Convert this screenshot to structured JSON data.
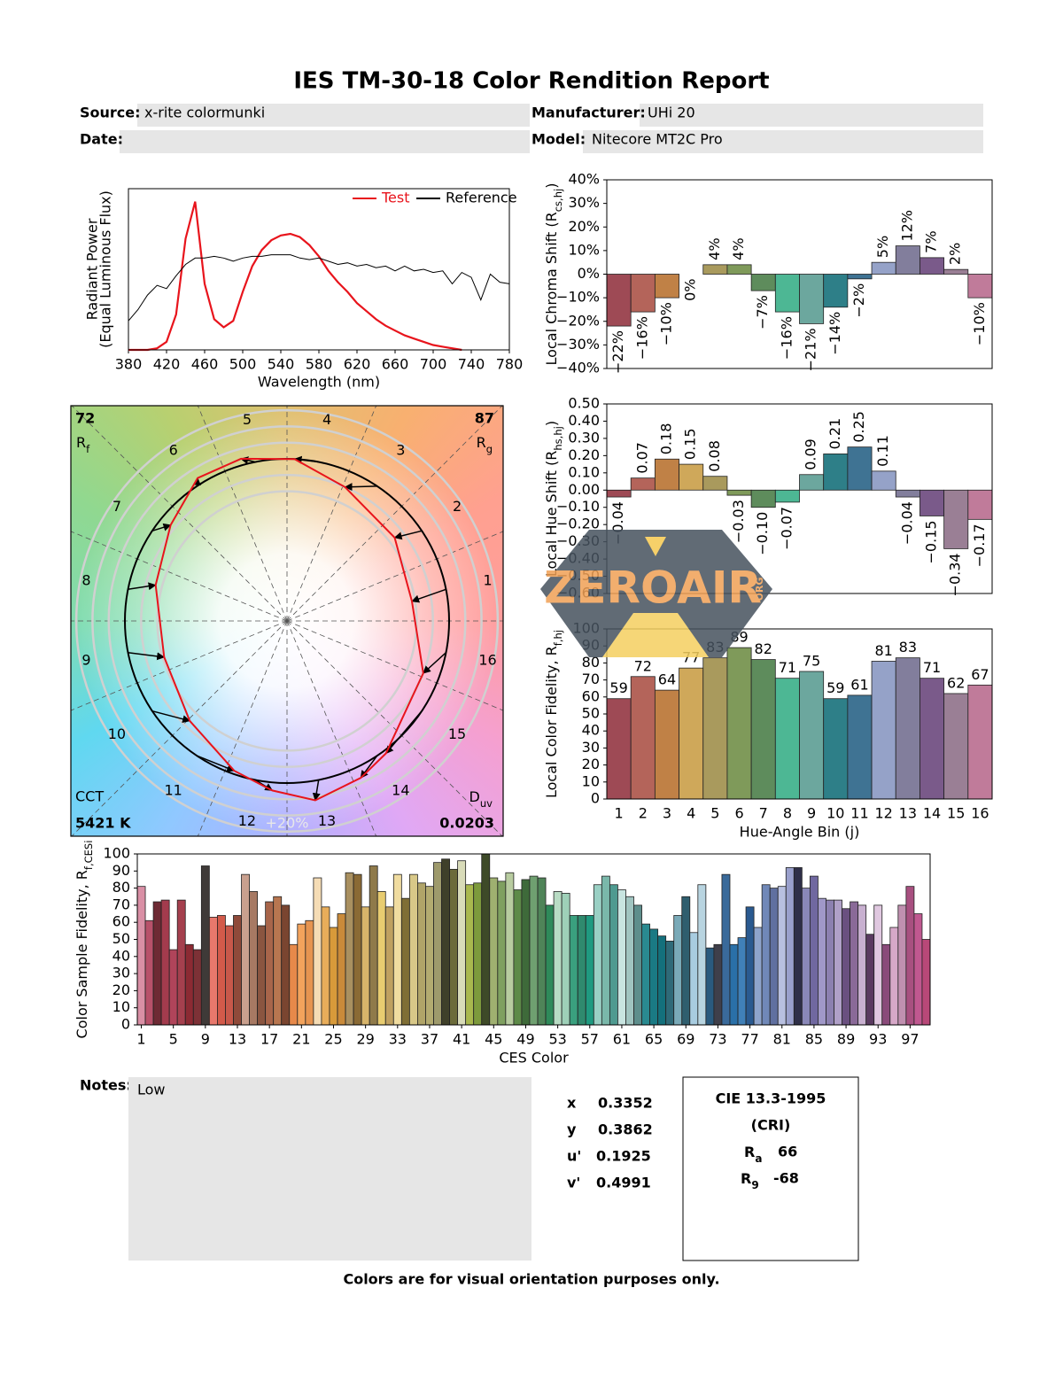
{
  "title": "IES TM-30-18 Color Rendition Report",
  "fields": [
    {
      "label": "Source:",
      "value": "x-rite colormunki"
    },
    {
      "label": "Manufacturer:",
      "value": "UHi 20"
    },
    {
      "label": "Date:"
    },
    {
      "label": "Model:",
      "value": "Nitecore MT2C Pro"
    }
  ],
  "chart_data": [
    {
      "type": "line",
      "xlabel": "Wavelength (nm)",
      "ylabel": "Radiant Power",
      "ylabel_note": "(Equal Luminous Flux)",
      "x": [
        380,
        390,
        400,
        410,
        420,
        430,
        440,
        450,
        460,
        470,
        480,
        490,
        500,
        510,
        520,
        530,
        540,
        550,
        560,
        570,
        580,
        590,
        600,
        610,
        620,
        630,
        640,
        650,
        660,
        670,
        680,
        690,
        700,
        710,
        720,
        730,
        740,
        750,
        760,
        770,
        780
      ],
      "series": [
        {
          "name": "Test",
          "color": "#e8141c",
          "values": [
            0,
            0,
            0,
            0.01,
            0.05,
            0.22,
            0.69,
            0.92,
            0.41,
            0.19,
            0.14,
            0.18,
            0.36,
            0.52,
            0.62,
            0.68,
            0.71,
            0.72,
            0.7,
            0.65,
            0.58,
            0.49,
            0.42,
            0.36,
            0.29,
            0.24,
            0.19,
            0.15,
            0.12,
            0.09,
            0.07,
            0.05,
            0.03,
            0.02,
            0.01,
            0,
            null,
            null,
            null,
            null,
            null
          ]
        },
        {
          "name": "Reference",
          "color": "#000000",
          "values": [
            0.18,
            0.25,
            0.34,
            0.4,
            0.38,
            0.46,
            0.53,
            0.57,
            0.57,
            0.58,
            0.57,
            0.55,
            0.57,
            0.58,
            0.58,
            0.59,
            0.59,
            0.59,
            0.57,
            0.56,
            0.57,
            0.55,
            0.53,
            0.54,
            0.52,
            0.53,
            0.51,
            0.52,
            0.49,
            0.52,
            0.49,
            0.5,
            0.48,
            0.49,
            0.41,
            0.48,
            0.45,
            0.31,
            0.47,
            0.42,
            0.41
          ]
        }
      ],
      "xlim": [
        380,
        780
      ],
      "xticks": [
        380,
        420,
        460,
        500,
        540,
        580,
        620,
        660,
        700,
        740,
        780
      ],
      "ylim": [
        0,
        1
      ],
      "legend": "upper right"
    },
    {
      "type": "bar",
      "ylabel": [
        "Local Chroma Shift (R",
        "cs,hj",
        ")"
      ],
      "values": [
        -22,
        -16,
        -10,
        0,
        4,
        4,
        -7,
        -16,
        -21,
        -14,
        -2,
        5,
        12,
        7,
        2,
        -10
      ],
      "value_labels": [
        "−22%",
        "−16%",
        "−10%",
        "0%",
        "4%",
        "4%",
        "−7%",
        "−16%",
        "−21%",
        "−14%",
        "−2%",
        "5%",
        "12%",
        "7%",
        "2%",
        "−10%"
      ],
      "data_labels": "vertical",
      "colors": [
        "#9e4a55",
        "#b4645a",
        "#c08146",
        "#cfa85a",
        "#a99a5d",
        "#7f9a5a",
        "#5e8c5c",
        "#4db794",
        "#6ca79e",
        "#2e7f88",
        "#3f7393",
        "#95a2c8",
        "#827e9c",
        "#7a5a8a",
        "#9a7f95",
        "#c07b9a"
      ],
      "ylim": [
        -40,
        40
      ],
      "yticks": [
        {
          "value": 40,
          "label": "40%"
        },
        {
          "value": 30,
          "label": "30%"
        },
        {
          "value": 20,
          "label": "20%"
        },
        {
          "value": 10,
          "label": "10%"
        },
        {
          "value": 0,
          "label": "0%"
        },
        {
          "value": -10,
          "label": "−10%"
        },
        {
          "value": -20,
          "label": "−20%"
        },
        {
          "value": -30,
          "label": "−30%"
        },
        {
          "value": -40,
          "label": "−40%"
        }
      ]
    },
    {
      "type": "bar",
      "ylabel": [
        "Local Hue Shift (R",
        "hs,hj",
        ")"
      ],
      "values": [
        -0.04,
        0.07,
        0.18,
        0.15,
        0.08,
        -0.03,
        -0.1,
        -0.07,
        0.09,
        0.21,
        0.25,
        0.11,
        -0.04,
        -0.15,
        -0.34,
        -0.17
      ],
      "value_labels": [
        "−0.04",
        "0.07",
        "0.18",
        "0.15",
        "0.08",
        "−0.03",
        "−0.10",
        "−0.07",
        "0.09",
        "0.21",
        "0.25",
        "0.11",
        "−0.04",
        "−0.15",
        "−0.34",
        "−0.17"
      ],
      "data_labels": "vertical",
      "colors": [
        "#9e4a55",
        "#b4645a",
        "#c08146",
        "#cfa85a",
        "#a99a5d",
        "#7f9a5a",
        "#5e8c5c",
        "#4db794",
        "#6ca79e",
        "#2e7f88",
        "#3f7393",
        "#95a2c8",
        "#827e9c",
        "#7a5a8a",
        "#9a7f95",
        "#c07b9a"
      ],
      "ylim": [
        -0.6,
        0.5
      ],
      "yticks": [
        {
          "value": 0.5,
          "label": "0.50"
        },
        {
          "value": 0.4,
          "label": "0.40"
        },
        {
          "value": 0.3,
          "label": "0.30"
        },
        {
          "value": 0.2,
          "label": "0.20"
        },
        {
          "value": 0.1,
          "label": "0.10"
        },
        {
          "value": 0,
          "label": "0.00"
        },
        {
          "value": -0.1,
          "label": "−0.10"
        },
        {
          "value": -0.2,
          "label": "−0.20"
        },
        {
          "value": -0.3,
          "label": "−0.30"
        },
        {
          "value": -0.4,
          "label": "−0.40"
        },
        {
          "value": -0.5,
          "label": "−0.50"
        },
        {
          "value": -0.6,
          "label": "−0.60"
        }
      ]
    },
    {
      "type": "bar",
      "ylabel": [
        "Local Color Fidelity, R",
        "f,hj"
      ],
      "xlabel": "Hue-Angle Bin (j)",
      "categories": [
        1,
        2,
        3,
        4,
        5,
        6,
        7,
        8,
        9,
        10,
        11,
        12,
        13,
        14,
        15,
        16
      ],
      "values": [
        59,
        72,
        64,
        77,
        83,
        89,
        82,
        71,
        75,
        59,
        61,
        81,
        83,
        71,
        62,
        67
      ],
      "data_labels": "horizontal",
      "colors": [
        "#9e4a55",
        "#b4645a",
        "#c08146",
        "#cfa85a",
        "#a99a5d",
        "#7f9a5a",
        "#5e8c5c",
        "#4db794",
        "#6ca79e",
        "#2e7f88",
        "#3f7393",
        "#95a2c8",
        "#827e9c",
        "#7a5a8a",
        "#9a7f95",
        "#c07b9a"
      ],
      "ylim": [
        0,
        100
      ],
      "yticks": [
        0,
        10,
        20,
        30,
        40,
        50,
        60,
        70,
        80,
        90,
        100
      ]
    },
    {
      "type": "vector",
      "hue_bins": [
        1,
        2,
        3,
        4,
        5,
        6,
        7,
        8,
        9,
        10,
        11,
        12,
        13,
        14,
        15,
        16
      ],
      "rf": 72,
      "rf_label": [
        "R",
        "f"
      ],
      "rg": 87,
      "rg_label": [
        "R",
        "g"
      ],
      "cct_label": "CCT",
      "cct": {
        "value": 5421,
        "label": "5421 K"
      },
      "duv_label": [
        "D",
        "uv"
      ],
      "duv": 0.0203,
      "ring_label": "+20%",
      "test_color": "#e8141c",
      "reference_color": "#000000"
    },
    {
      "type": "bar",
      "ylabel": [
        "Color Sample Fidelity, R",
        "f,CESi"
      ],
      "xlabel": "CES Color",
      "x": [
        1,
        2,
        3,
        4,
        5,
        6,
        7,
        8,
        9,
        10,
        11,
        12,
        13,
        14,
        15,
        16,
        17,
        18,
        19,
        20,
        21,
        22,
        23,
        24,
        25,
        26,
        27,
        28,
        29,
        30,
        31,
        32,
        33,
        34,
        35,
        36,
        37,
        38,
        39,
        40,
        41,
        42,
        43,
        44,
        45,
        46,
        47,
        48,
        49,
        50,
        51,
        52,
        53,
        54,
        55,
        56,
        57,
        58,
        59,
        60,
        61,
        62,
        63,
        64,
        65,
        66,
        67,
        68,
        69,
        70,
        71,
        72,
        73,
        74,
        75,
        76,
        77,
        78,
        79,
        80,
        81,
        82,
        83,
        84,
        85,
        86,
        87,
        88,
        89,
        90,
        91,
        92,
        93,
        94,
        95,
        96,
        97,
        98,
        99
      ],
      "values": [
        81,
        61,
        72,
        73,
        44,
        73,
        47,
        44,
        93,
        63,
        64,
        58,
        64,
        88,
        78,
        58,
        72,
        75,
        70,
        47,
        59,
        61,
        86,
        69,
        57,
        65,
        89,
        88,
        69,
        93,
        78,
        69,
        88,
        74,
        88,
        83,
        81,
        95,
        97,
        91,
        96,
        82,
        83,
        100,
        86,
        84,
        89,
        79,
        85,
        87,
        86,
        70,
        78,
        77,
        64,
        64,
        64,
        82,
        87,
        82,
        79,
        75,
        70,
        59,
        56,
        52,
        49,
        64,
        75,
        54,
        82,
        45,
        47,
        88,
        47,
        51,
        69,
        57,
        82,
        80,
        81,
        92,
        92,
        80,
        87,
        74,
        73,
        73,
        68,
        72,
        70,
        53,
        70,
        47,
        57,
        70,
        81,
        65,
        50
      ],
      "colors": [
        "#d98fa5",
        "#b8516a",
        "#6e2a34",
        "#a33b4d",
        "#b0445a",
        "#a5404e",
        "#8c2a33",
        "#7d3136",
        "#3f3a38",
        "#e8786c",
        "#d35a4a",
        "#c8584a",
        "#8f4a3a",
        "#c9a08e",
        "#a77963",
        "#8a5540",
        "#a8654a",
        "#b87650",
        "#7a4530",
        "#e7894a",
        "#f3a35c",
        "#e69450",
        "#f5dcb5",
        "#e8ad5a",
        "#d89a3a",
        "#c98a3a",
        "#a99060",
        "#8a6a35",
        "#d7b46a",
        "#8f7a4a",
        "#e8cc70",
        "#bfa060",
        "#f0dca0",
        "#7f6e35",
        "#d8c888",
        "#b0a468",
        "#b3ab70",
        "#9e9a6c",
        "#3f402a",
        "#6b6b3a",
        "#d8dbb8",
        "#a9b84e",
        "#7d9a3c",
        "#3e4a28",
        "#9fb070",
        "#7fa060",
        "#b8cca0",
        "#5d8a48",
        "#3e6a3a",
        "#6fa070",
        "#4f8458",
        "#2f8a5a",
        "#b8dcc4",
        "#9ed0b8",
        "#3aa07e",
        "#2f8a6e",
        "#1f9a80",
        "#9ad0c4",
        "#7ab8aa",
        "#4f9a90",
        "#c8e4e0",
        "#a0c4c0",
        "#5e8e8c",
        "#2a8a90",
        "#1a7a84",
        "#14707c",
        "#2f6a78",
        "#7aaab8",
        "#2f5e6e",
        "#a8cce0",
        "#b8d4e0",
        "#2a5a7e",
        "#3f3f4a",
        "#3a6a9a",
        "#2a70a8",
        "#4080b8",
        "#2a5a90",
        "#8ea4cc",
        "#7088b8",
        "#6070a0",
        "#b8c0e0",
        "#9aa0cc",
        "#2f2f48",
        "#8a88b8",
        "#7068a0",
        "#a098c8",
        "#8c80b0",
        "#b0a0c8",
        "#6a5080",
        "#8a6a98",
        "#c8b0d0",
        "#5a3a60",
        "#e0c8e0",
        "#8a4a7a",
        "#d6a8c8",
        "#c090b0",
        "#a85080",
        "#c05890",
        "#b84878"
      ],
      "xlim": [
        0.5,
        99.5
      ],
      "xticks": [
        1,
        5,
        9,
        13,
        17,
        21,
        25,
        29,
        33,
        37,
        41,
        45,
        49,
        53,
        57,
        61,
        65,
        69,
        73,
        77,
        81,
        85,
        89,
        93,
        97
      ],
      "ylim": [
        0,
        100
      ],
      "yticks": [
        0,
        10,
        20,
        30,
        40,
        50,
        60,
        70,
        80,
        90,
        100
      ]
    }
  ],
  "notes": {
    "label": "Notes:",
    "text": "Low"
  },
  "chromaticity": [
    {
      "label": "x",
      "value": 0.3352
    },
    {
      "label": "y",
      "value": 0.3862
    },
    {
      "label": "u'",
      "value": 0.1925
    },
    {
      "label": "v'",
      "value": 0.4991
    }
  ],
  "cri": {
    "title": "CIE 13.3-1995",
    "subtitle": "(CRI)",
    "indices": [
      {
        "symbol": "R",
        "sub": "a",
        "value": 66
      },
      {
        "symbol": "R",
        "sub": "9",
        "value": -68
      }
    ]
  },
  "footer": "Colors are for visual orientation purposes only.",
  "watermark": "ZEROAIR",
  "watermark_sub": "ORG"
}
